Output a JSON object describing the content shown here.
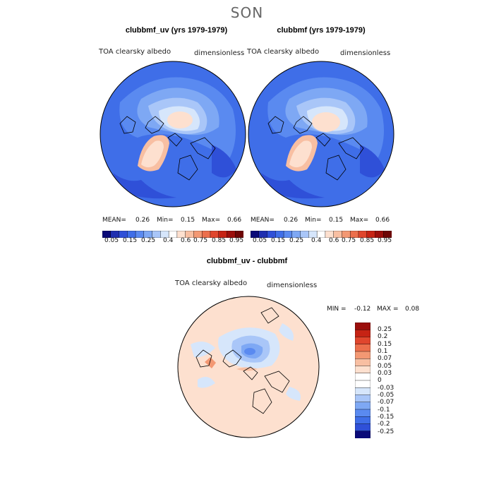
{
  "page": {
    "season": "SON"
  },
  "chart_data": [
    {
      "type": "heatmap",
      "title": "clubbmf_uv (yrs 1979-1979)",
      "variable": "TOA clearsky albedo",
      "units": "dimensionless",
      "projection": "north polar stereographic",
      "stats": {
        "mean_label": "MEAN=",
        "mean": "0.26",
        "min_label": "Min=",
        "min": "0.15",
        "max_label": "Max=",
        "max": "0.66"
      },
      "colorbar": {
        "levels": [
          0.05,
          0.1,
          0.15,
          0.2,
          0.25,
          0.3,
          0.35,
          0.4,
          0.5,
          0.6,
          0.65,
          0.7,
          0.75,
          0.8,
          0.85,
          0.9,
          0.95
        ],
        "tick_labels": [
          "0.05",
          "0.15",
          "0.25",
          "0.4",
          "0.6",
          "0.75",
          "0.85",
          "0.95"
        ],
        "colors": [
          "#0a0a78",
          "#1f2fb0",
          "#2f50d8",
          "#3f6ee8",
          "#5a8af0",
          "#7ea8f4",
          "#a9c6f8",
          "#d6e6fb",
          "#ffffff",
          "#fde0cf",
          "#f8bfa2",
          "#f39873",
          "#ec6f4c",
          "#e0462d",
          "#c62314",
          "#9b0e0b",
          "#6e0505"
        ]
      }
    },
    {
      "type": "heatmap",
      "title": "clubbmf (yrs 1979-1979)",
      "variable": "TOA clearsky albedo",
      "units": "dimensionless",
      "projection": "north polar stereographic",
      "stats": {
        "mean_label": "MEAN=",
        "mean": "0.26",
        "min_label": "Min=",
        "min": "0.15",
        "max_label": "Max=",
        "max": "0.66"
      },
      "colorbar": {
        "levels": [
          0.05,
          0.1,
          0.15,
          0.2,
          0.25,
          0.3,
          0.35,
          0.4,
          0.5,
          0.6,
          0.65,
          0.7,
          0.75,
          0.8,
          0.85,
          0.9,
          0.95
        ],
        "tick_labels": [
          "0.05",
          "0.15",
          "0.25",
          "0.4",
          "0.6",
          "0.75",
          "0.85",
          "0.95"
        ],
        "colors": [
          "#0a0a78",
          "#1f2fb0",
          "#2f50d8",
          "#3f6ee8",
          "#5a8af0",
          "#7ea8f4",
          "#a9c6f8",
          "#d6e6fb",
          "#ffffff",
          "#fde0cf",
          "#f8bfa2",
          "#f39873",
          "#ec6f4c",
          "#e0462d",
          "#c62314",
          "#9b0e0b",
          "#6e0505"
        ]
      }
    },
    {
      "type": "heatmap",
      "title": "clubbmf_uv - clubbmf",
      "variable": "TOA clearsky albedo",
      "units": "dimensionless",
      "projection": "north polar stereographic",
      "stats": {
        "min_label": "MIN =",
        "min": "-0.12",
        "max_label": "MAX =",
        "max": "0.08"
      },
      "colorbar": {
        "tick_labels": [
          "0.25",
          "0.2",
          "0.15",
          "0.1",
          "0.07",
          "0.05",
          "0.03",
          "0",
          "-0.03",
          "-0.05",
          "-0.07",
          "-0.1",
          "-0.15",
          "-0.2",
          "-0.25"
        ],
        "colors": [
          "#9b0e0b",
          "#c62314",
          "#e0462d",
          "#ec6f4c",
          "#f39873",
          "#f8bfa2",
          "#fde0cf",
          "#ffffff",
          "#ffffff",
          "#d6e6fb",
          "#a9c6f8",
          "#7ea8f4",
          "#5a8af0",
          "#3f6ee8",
          "#2f50d8",
          "#0a0a78"
        ]
      }
    }
  ]
}
